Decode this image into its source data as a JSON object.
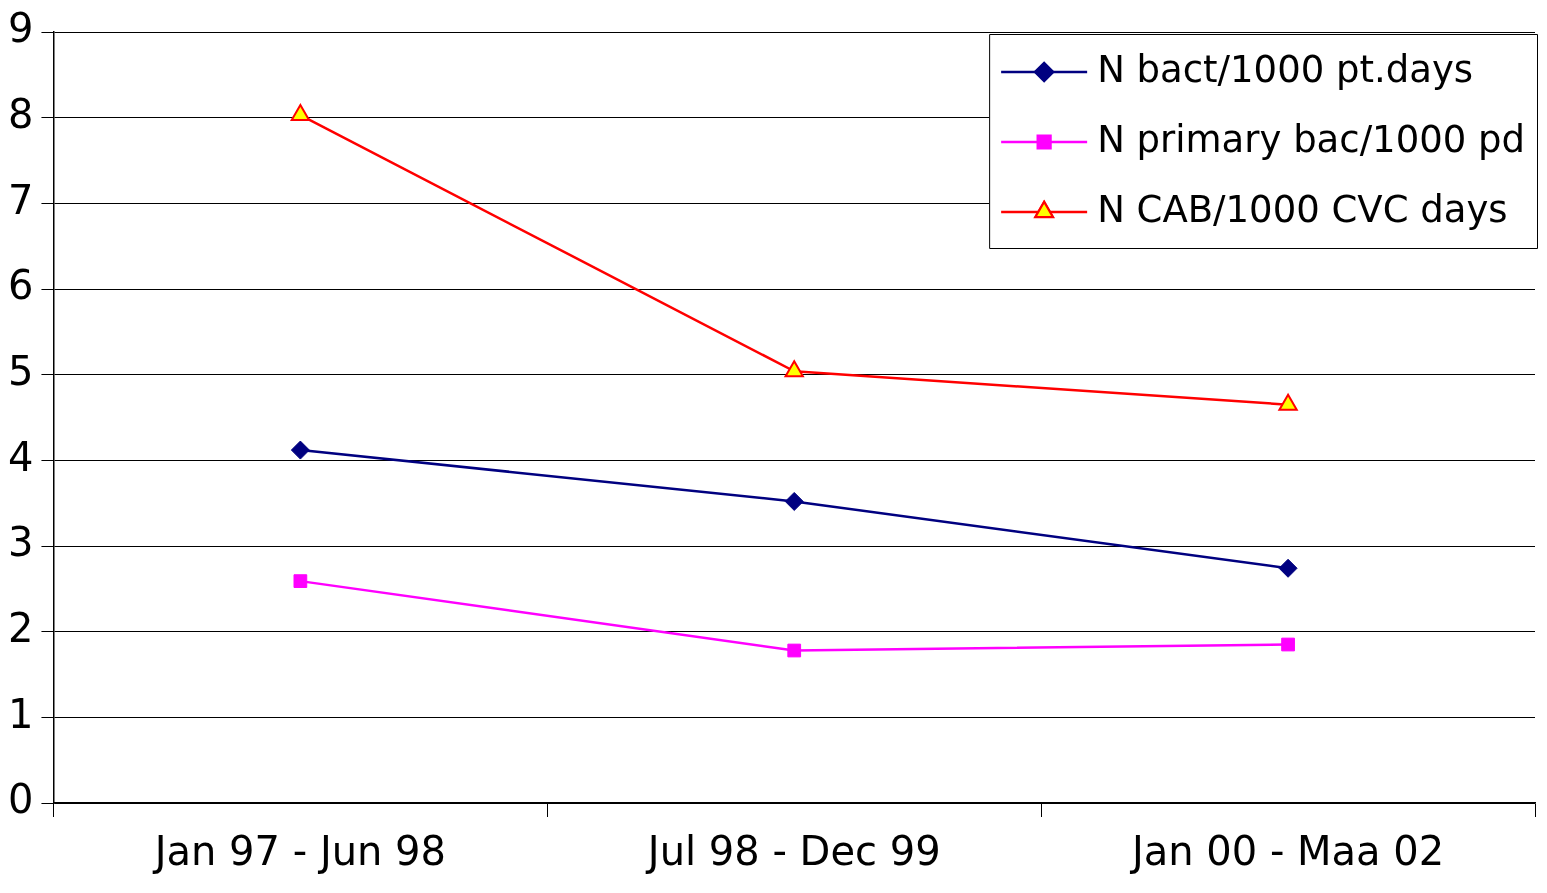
{
  "chart_data": {
    "type": "line",
    "categories": [
      "Jan 97 - Jun 98",
      "Jul 98 - Dec 99",
      "Jan 00 - Maa 02"
    ],
    "series": [
      {
        "name": "N bact/1000 pt.days",
        "color": "#000080",
        "marker": "diamond",
        "values": [
          4.12,
          3.52,
          2.74
        ]
      },
      {
        "name": "N primary bac/1000 pd",
        "color": "#ff00ff",
        "marker": "square",
        "values": [
          2.59,
          1.78,
          1.85
        ]
      },
      {
        "name": "N CAB/1000 CVC days",
        "color": "#ff0000",
        "marker": "triangle",
        "values": [
          8.03,
          5.04,
          4.65
        ]
      }
    ],
    "ylim": [
      0,
      9
    ],
    "yticks": [
      0,
      1,
      2,
      3,
      4,
      5,
      6,
      7,
      8,
      9
    ],
    "grid": "y",
    "legend": "top right",
    "line_style": "solid"
  }
}
